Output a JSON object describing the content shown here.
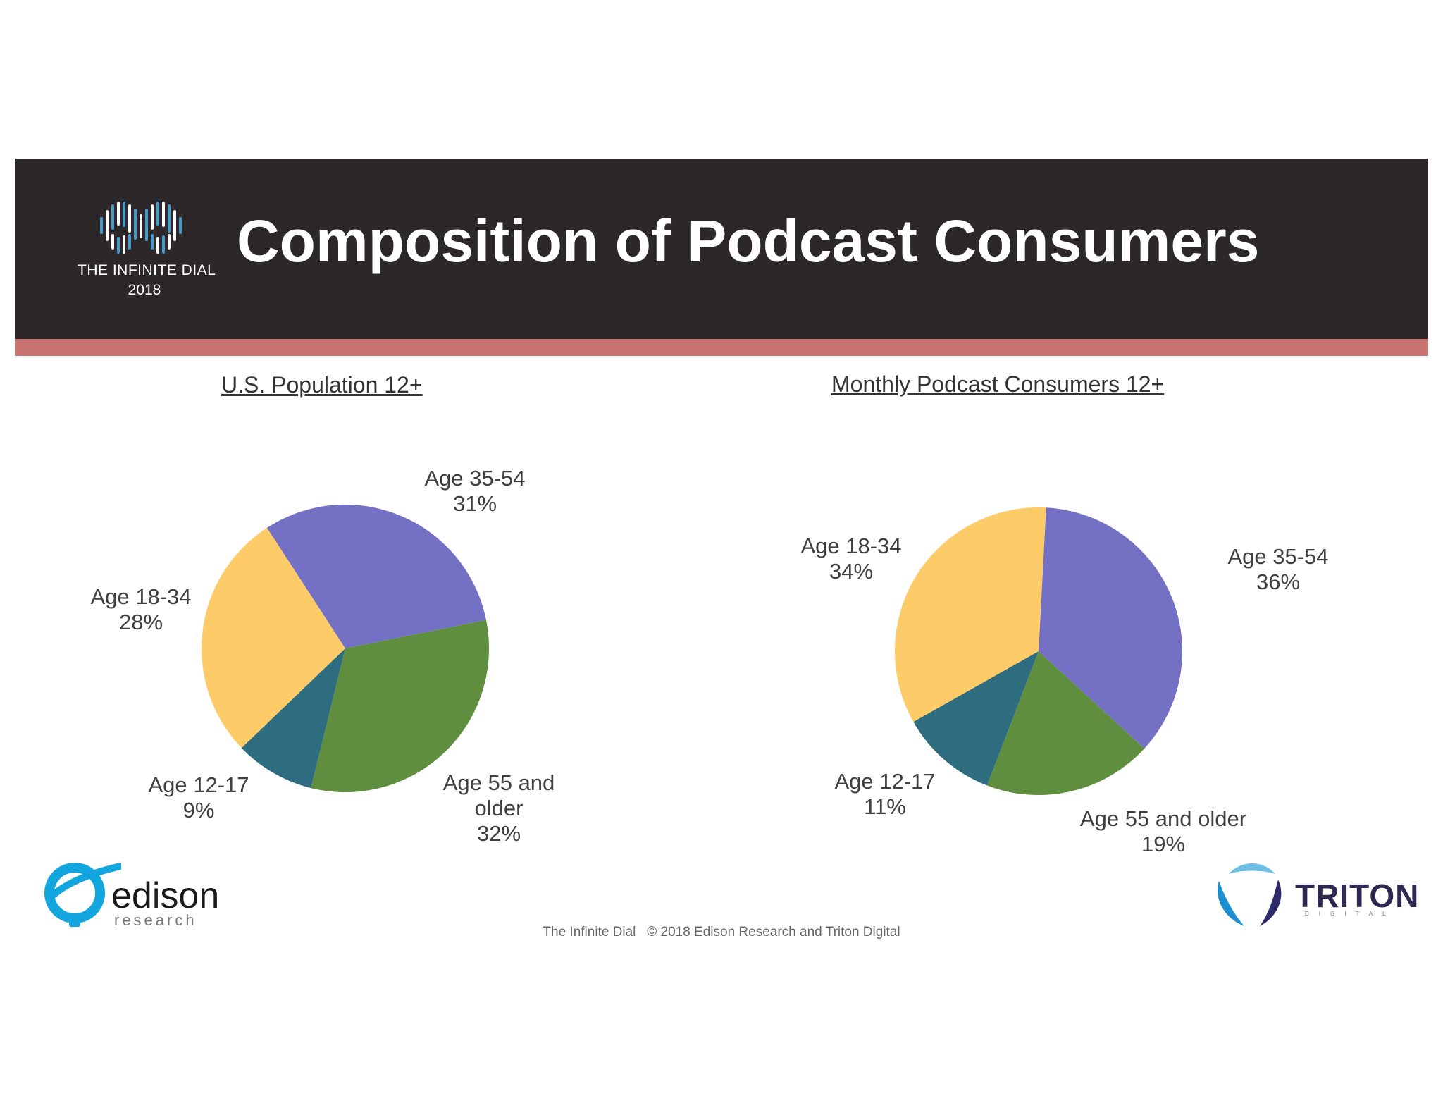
{
  "header": {
    "title": "Composition of Podcast Consumers",
    "logo_name": "THE INFINITE DIAL",
    "logo_year": "2018"
  },
  "colors": {
    "banner": "#2c2829",
    "stripe": "#c97470",
    "age_12_17": "#2e6d80",
    "age_18_34": "#fecb69",
    "age_35_54": "#7471c5",
    "age_55_plus": "#5f8f3e"
  },
  "chart_data": [
    {
      "type": "pie",
      "title": "U.S. Population 12+",
      "slices": [
        {
          "label": "Age 35-54",
          "value": 31,
          "value_label": "31%",
          "color": "#7471c5"
        },
        {
          "label": "Age 55 and older",
          "value": 32,
          "value_label": "32%",
          "color": "#5f8f3e"
        },
        {
          "label": "Age 12-17",
          "value": 9,
          "value_label": "9%",
          "color": "#2e6d80"
        },
        {
          "label": "Age 18-34",
          "value": 28,
          "value_label": "28%",
          "color": "#fecb69"
        }
      ],
      "display_labels": {
        "age_35_54": "Age 35-54\n31%",
        "age_55_plus": "Age 55 and\nolder\n32%",
        "age_12_17": "Age 12-17\n9%",
        "age_18_34": "Age 18-34\n28%"
      }
    },
    {
      "type": "pie",
      "title": "Monthly Podcast Consumers 12+",
      "slices": [
        {
          "label": "Age 35-54",
          "value": 36,
          "value_label": "36%",
          "color": "#7471c5"
        },
        {
          "label": "Age 55 and older",
          "value": 19,
          "value_label": "19%",
          "color": "#5f8f3e"
        },
        {
          "label": "Age 12-17",
          "value": 11,
          "value_label": "11%",
          "color": "#2e6d80"
        },
        {
          "label": "Age 18-34",
          "value": 34,
          "value_label": "34%",
          "color": "#fecb69"
        }
      ],
      "display_labels": {
        "age_35_54": "Age 35-54\n36%",
        "age_55_plus": "Age 55 and older\n19%",
        "age_12_17": "Age 12-17\n11%",
        "age_18_34": "Age 18-34\n34%"
      }
    }
  ],
  "logos": {
    "edison_word": "edison",
    "edison_sub": "research",
    "triton_word": "TRITON",
    "triton_sub": "DIGITAL"
  },
  "footer": {
    "text": "The Infinite Dial   © 2018 Edison Research and Triton Digital"
  }
}
